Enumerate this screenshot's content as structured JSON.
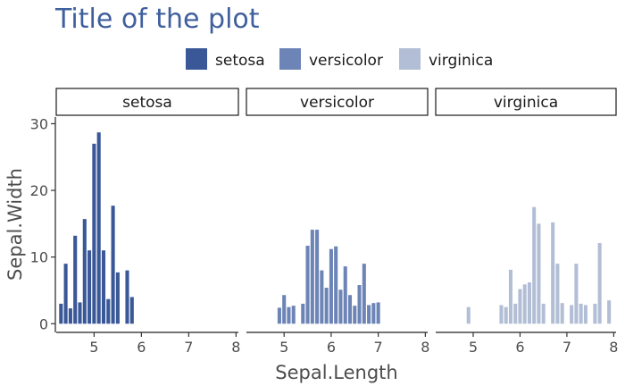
{
  "chart_data": {
    "type": "bar",
    "title": "Title of the plot",
    "xlabel": "Sepal.Length",
    "ylabel": "Sepal.Width",
    "xlim": [
      4.2,
      8.05
    ],
    "ylim": [
      -1.3,
      31
    ],
    "x_ticks": [
      "5",
      "6",
      "7",
      "8"
    ],
    "y_ticks": [
      "0",
      "10",
      "20",
      "30"
    ],
    "legend_position": "top",
    "title_color": "#3f5f9d",
    "series": [
      {
        "name": "setosa",
        "color": "#3a5898",
        "bars": [
          {
            "x": 4.3,
            "y": 3.0
          },
          {
            "x": 4.4,
            "y": 9.0
          },
          {
            "x": 4.5,
            "y": 2.3
          },
          {
            "x": 4.6,
            "y": 13.2
          },
          {
            "x": 4.7,
            "y": 3.2
          },
          {
            "x": 4.8,
            "y": 15.7
          },
          {
            "x": 4.9,
            "y": 11.0
          },
          {
            "x": 5.0,
            "y": 27.0
          },
          {
            "x": 5.1,
            "y": 28.7
          },
          {
            "x": 5.2,
            "y": 11.0
          },
          {
            "x": 5.3,
            "y": 3.7
          },
          {
            "x": 5.4,
            "y": 17.7
          },
          {
            "x": 5.5,
            "y": 7.7
          },
          {
            "x": 5.7,
            "y": 8.0
          },
          {
            "x": 5.8,
            "y": 4.0
          }
        ]
      },
      {
        "name": "versicolor",
        "color": "#6d84b6",
        "bars": [
          {
            "x": 4.9,
            "y": 2.4
          },
          {
            "x": 5.0,
            "y": 4.3
          },
          {
            "x": 5.1,
            "y": 2.5
          },
          {
            "x": 5.2,
            "y": 2.7
          },
          {
            "x": 5.4,
            "y": 3.0
          },
          {
            "x": 5.5,
            "y": 11.7
          },
          {
            "x": 5.6,
            "y": 14.1
          },
          {
            "x": 5.7,
            "y": 14.1
          },
          {
            "x": 5.8,
            "y": 8.0
          },
          {
            "x": 5.9,
            "y": 5.4
          },
          {
            "x": 6.0,
            "y": 11.2
          },
          {
            "x": 6.1,
            "y": 11.6
          },
          {
            "x": 6.2,
            "y": 5.1
          },
          {
            "x": 6.3,
            "y": 8.6
          },
          {
            "x": 6.4,
            "y": 4.3
          },
          {
            "x": 6.5,
            "y": 2.7
          },
          {
            "x": 6.6,
            "y": 5.8
          },
          {
            "x": 6.7,
            "y": 9.0
          },
          {
            "x": 6.8,
            "y": 2.8
          },
          {
            "x": 6.9,
            "y": 3.1
          },
          {
            "x": 7.0,
            "y": 3.2
          }
        ]
      },
      {
        "name": "virginica",
        "color": "#b2bed5",
        "bars": [
          {
            "x": 4.9,
            "y": 2.5
          },
          {
            "x": 5.6,
            "y": 2.8
          },
          {
            "x": 5.7,
            "y": 2.5
          },
          {
            "x": 5.8,
            "y": 8.1
          },
          {
            "x": 5.9,
            "y": 3.0
          },
          {
            "x": 6.0,
            "y": 5.2
          },
          {
            "x": 6.1,
            "y": 5.9
          },
          {
            "x": 6.2,
            "y": 6.2
          },
          {
            "x": 6.3,
            "y": 17.5
          },
          {
            "x": 6.4,
            "y": 15.0
          },
          {
            "x": 6.5,
            "y": 3.0
          },
          {
            "x": 6.7,
            "y": 15.2
          },
          {
            "x": 6.8,
            "y": 9.0
          },
          {
            "x": 6.9,
            "y": 3.1
          },
          {
            "x": 7.1,
            "y": 2.8
          },
          {
            "x": 7.2,
            "y": 9.0
          },
          {
            "x": 7.3,
            "y": 3.0
          },
          {
            "x": 7.4,
            "y": 2.8
          },
          {
            "x": 7.6,
            "y": 3.0
          },
          {
            "x": 7.7,
            "y": 12.1
          },
          {
            "x": 7.9,
            "y": 3.5
          }
        ]
      }
    ]
  }
}
